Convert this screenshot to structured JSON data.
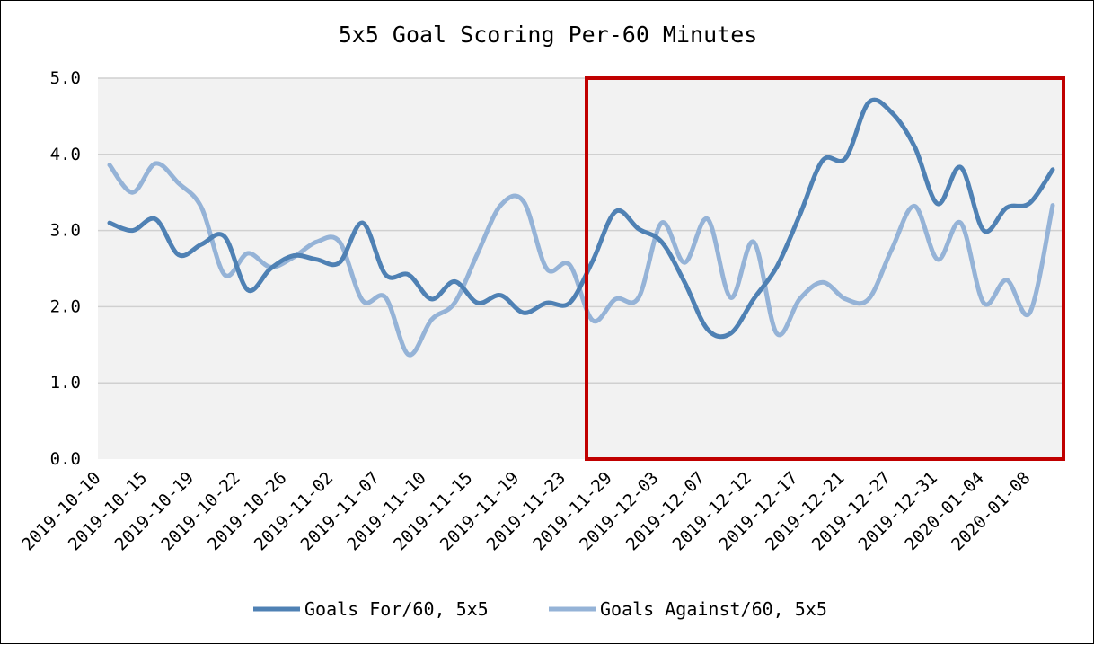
{
  "chart_data": {
    "type": "line",
    "title": "5x5 Goal Scoring Per-60 Minutes",
    "xlabel": "",
    "ylabel": "",
    "ylim": [
      0,
      5
    ],
    "y_ticks": [
      "0.0",
      "1.0",
      "2.0",
      "3.0",
      "4.0",
      "5.0"
    ],
    "grid": "horizontal",
    "legend_position": "bottom",
    "background_color": "#f2f2f2",
    "x_labels": [
      "2019-10-10",
      "2019-10-15",
      "2019-10-19",
      "2019-10-22",
      "2019-10-26",
      "2019-11-02",
      "2019-11-07",
      "2019-11-10",
      "2019-11-15",
      "2019-11-19",
      "2019-11-23",
      "2019-11-29",
      "2019-12-03",
      "2019-12-07",
      "2019-12-12",
      "2019-12-17",
      "2019-12-21",
      "2019-12-27",
      "2019-12-31",
      "2020-01-04",
      "2020-01-08"
    ],
    "series": [
      {
        "name": "Goals For/60, 5x5",
        "color": "#4f81b4",
        "values": [
          3.1,
          3.0,
          3.15,
          2.68,
          2.82,
          2.92,
          2.22,
          2.5,
          2.67,
          2.62,
          2.58,
          3.1,
          2.42,
          2.42,
          2.1,
          2.33,
          2.05,
          2.15,
          1.92,
          2.05,
          2.05,
          2.6,
          3.25,
          3.02,
          2.85,
          2.32,
          1.7,
          1.65,
          2.1,
          2.52,
          3.2,
          3.92,
          3.95,
          4.68,
          4.55,
          4.1,
          3.35,
          3.83,
          3.0,
          3.3,
          3.36,
          3.8
        ]
      },
      {
        "name": "Goals Against/60, 5x5",
        "color": "#95b3d7",
        "values": [
          3.86,
          3.5,
          3.88,
          3.62,
          3.3,
          2.42,
          2.7,
          2.52,
          2.65,
          2.85,
          2.85,
          2.08,
          2.12,
          1.37,
          1.83,
          2.05,
          2.7,
          3.33,
          3.38,
          2.5,
          2.55,
          1.82,
          2.1,
          2.12,
          3.1,
          2.58,
          3.15,
          2.12,
          2.85,
          1.65,
          2.1,
          2.32,
          2.1,
          2.1,
          2.75,
          3.32,
          2.62,
          3.1,
          2.05,
          2.35,
          1.92,
          3.33
        ]
      }
    ],
    "annotations": [
      {
        "type": "highlight-box",
        "color": "#c00000",
        "from_date": "2019-11-23",
        "to_date": "2020-01-08",
        "y_range": [
          0,
          5
        ]
      }
    ]
  }
}
